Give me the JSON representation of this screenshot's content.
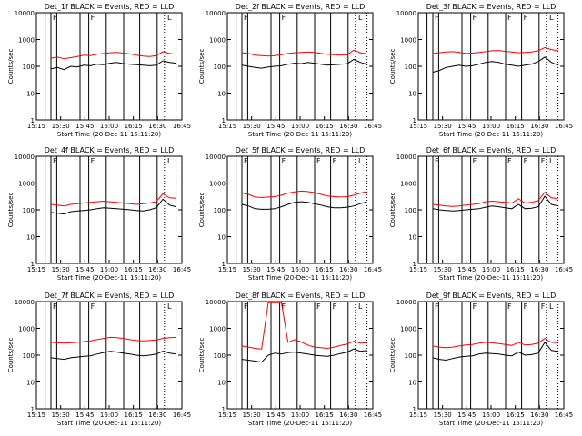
{
  "chart_data": [
    {
      "type": "line",
      "title": "Det_1f BLACK = Events, RED = LLD",
      "xlabel": "Start Time (20-Dec-11 15:11:20)",
      "ylabel": "Counts/sec",
      "yscale": "log",
      "ylim": [
        1,
        10000
      ],
      "x_ticks": [
        "15:15",
        "15:30",
        "15:45",
        "16:00",
        "16:15",
        "16:30",
        "16:45"
      ],
      "y_ticks": [
        "1",
        "10",
        "100",
        "1000",
        "10000"
      ],
      "flags": [
        "F",
        "F",
        "L"
      ],
      "series": [
        {
          "name": "Events",
          "color": "#000000",
          "values": [
            80,
            90,
            75,
            100,
            95,
            110,
            105,
            120,
            115,
            130,
            140,
            125,
            120,
            115,
            110,
            105,
            110,
            160,
            140,
            130
          ]
        },
        {
          "name": "LLD",
          "color": "#ff0000",
          "values": [
            200,
            220,
            190,
            210,
            230,
            260,
            250,
            280,
            300,
            320,
            330,
            310,
            290,
            260,
            240,
            230,
            250,
            350,
            300,
            280
          ]
        }
      ]
    },
    {
      "type": "line",
      "title": "Det_2f BLACK = Events, RED = LLD",
      "xlabel": "Start Time (20-Dec-11 15:11:20)",
      "ylabel": "Counts/sec",
      "yscale": "log",
      "ylim": [
        1,
        10000
      ],
      "x_ticks": [
        "15:15",
        "15:30",
        "15:45",
        "16:00",
        "16:15",
        "16:30",
        "16:45"
      ],
      "y_ticks": [
        "1",
        "10",
        "100",
        "1000",
        "10000"
      ],
      "flags": [
        "F",
        "F",
        "L"
      ],
      "series": [
        {
          "name": "Events",
          "color": "#000000",
          "values": [
            110,
            100,
            90,
            85,
            95,
            100,
            105,
            120,
            130,
            125,
            140,
            130,
            120,
            110,
            115,
            120,
            125,
            180,
            140,
            120
          ]
        },
        {
          "name": "LLD",
          "color": "#ff0000",
          "values": [
            320,
            300,
            260,
            250,
            240,
            250,
            270,
            300,
            320,
            330,
            340,
            330,
            300,
            280,
            270,
            260,
            270,
            400,
            320,
            290
          ]
        }
      ]
    },
    {
      "type": "line",
      "title": "Det_3f BLACK = Events, RED = LLD",
      "xlabel": "Start Time (20-Dec-11 15:11:20)",
      "ylabel": "Counts/sec",
      "yscale": "log",
      "ylim": [
        1,
        10000
      ],
      "x_ticks": [
        "15:15",
        "15:30",
        "15:45",
        "16:00",
        "16:15",
        "16:30",
        "16:45"
      ],
      "y_ticks": [
        "1",
        "10",
        "100",
        "1000",
        "10000"
      ],
      "flags": [
        "F",
        "F",
        "F",
        "F",
        "L"
      ],
      "series": [
        {
          "name": "Events",
          "color": "#000000",
          "values": [
            60,
            70,
            90,
            100,
            110,
            100,
            105,
            120,
            140,
            150,
            140,
            120,
            110,
            100,
            110,
            120,
            150,
            220,
            140,
            110
          ]
        },
        {
          "name": "LLD",
          "color": "#ff0000",
          "values": [
            300,
            320,
            340,
            350,
            330,
            300,
            310,
            330,
            350,
            380,
            390,
            360,
            340,
            320,
            330,
            340,
            380,
            500,
            420,
            380
          ]
        }
      ]
    },
    {
      "type": "line",
      "title": "Det_4f BLACK = Events, RED = LLD",
      "xlabel": "Start Time (20-Dec-11 15:11:20)",
      "ylabel": "Counts/sec",
      "yscale": "log",
      "ylim": [
        1,
        10000
      ],
      "x_ticks": [
        "15:15",
        "15:30",
        "15:45",
        "16:00",
        "16:15",
        "16:30",
        "16:45"
      ],
      "y_ticks": [
        "1",
        "10",
        "100",
        "1000",
        "10000"
      ],
      "flags": [
        "F",
        "F",
        "L"
      ],
      "series": [
        {
          "name": "Events",
          "color": "#000000",
          "values": [
            80,
            75,
            70,
            85,
            90,
            95,
            100,
            110,
            120,
            115,
            110,
            105,
            100,
            95,
            90,
            100,
            120,
            250,
            150,
            130
          ]
        },
        {
          "name": "LLD",
          "color": "#ff0000",
          "values": [
            160,
            150,
            140,
            160,
            170,
            180,
            190,
            200,
            210,
            200,
            190,
            180,
            170,
            160,
            170,
            180,
            200,
            400,
            280,
            270
          ]
        }
      ]
    },
    {
      "type": "line",
      "title": "Det_5f BLACK = Events, RED = LLD",
      "xlabel": "Start Time (20-Dec-11 15:11:20)",
      "ylabel": "Counts/sec",
      "yscale": "log",
      "ylim": [
        1,
        10000
      ],
      "x_ticks": [
        "15:15",
        "15:30",
        "15:45",
        "16:00",
        "16:15",
        "16:30",
        "16:45"
      ],
      "y_ticks": [
        "1",
        "10",
        "100",
        "1000",
        "10000"
      ],
      "flags": [
        "F",
        "F",
        "F",
        "F",
        "L"
      ],
      "series": [
        {
          "name": "Events",
          "color": "#000000",
          "values": [
            160,
            140,
            110,
            105,
            105,
            110,
            130,
            160,
            190,
            200,
            190,
            170,
            150,
            130,
            120,
            120,
            125,
            140,
            170,
            200
          ]
        },
        {
          "name": "LLD",
          "color": "#ff0000",
          "values": [
            420,
            380,
            300,
            290,
            300,
            310,
            350,
            420,
            470,
            500,
            480,
            440,
            380,
            330,
            310,
            300,
            310,
            350,
            420,
            480
          ]
        }
      ]
    },
    {
      "type": "line",
      "title": "Det_6f BLACK = Events, RED = LLD",
      "xlabel": "Start Time (20-Dec-11 15:11:20)",
      "ylabel": "Counts/sec",
      "yscale": "log",
      "ylim": [
        1,
        10000
      ],
      "x_ticks": [
        "15:15",
        "15:30",
        "15:45",
        "16:00",
        "16:15",
        "16:30",
        "16:45"
      ],
      "y_ticks": [
        "1",
        "10",
        "100",
        "1000",
        "10000"
      ],
      "flags": [
        "F",
        "F",
        "F",
        "F",
        "F",
        "L"
      ],
      "series": [
        {
          "name": "Events",
          "color": "#000000",
          "values": [
            110,
            100,
            95,
            90,
            95,
            100,
            105,
            110,
            125,
            140,
            130,
            120,
            110,
            160,
            110,
            115,
            130,
            320,
            160,
            140
          ]
        },
        {
          "name": "LLD",
          "color": "#ff0000",
          "values": [
            160,
            150,
            140,
            135,
            140,
            150,
            160,
            170,
            200,
            210,
            200,
            190,
            180,
            260,
            180,
            190,
            220,
            450,
            280,
            260
          ]
        }
      ]
    },
    {
      "type": "line",
      "title": "Det_7f BLACK = Events, RED = LLD",
      "xlabel": "Start Time (20-Dec-11 15:11:20)",
      "ylabel": "Counts/sec",
      "yscale": "log",
      "ylim": [
        1,
        10000
      ],
      "x_ticks": [
        "15:15",
        "15:30",
        "15:45",
        "16:00",
        "16:15",
        "16:30",
        "16:45"
      ],
      "y_ticks": [
        "1",
        "10",
        "100",
        "1000",
        "10000"
      ],
      "flags": [
        "F",
        "F",
        "L"
      ],
      "series": [
        {
          "name": "Events",
          "color": "#000000",
          "values": [
            80,
            75,
            70,
            80,
            85,
            90,
            95,
            110,
            125,
            140,
            130,
            120,
            110,
            100,
            95,
            100,
            110,
            140,
            120,
            110
          ]
        },
        {
          "name": "LLD",
          "color": "#ff0000",
          "values": [
            300,
            290,
            280,
            290,
            300,
            320,
            340,
            380,
            420,
            460,
            450,
            420,
            380,
            350,
            340,
            350,
            370,
            420,
            450,
            460
          ]
        }
      ]
    },
    {
      "type": "line",
      "title": "Det_8f BLACK = Events, RED = LLD",
      "xlabel": "Start Time (20-Dec-11 15:11:20)",
      "ylabel": "Counts/sec",
      "yscale": "log",
      "ylim": [
        1,
        10000
      ],
      "x_ticks": [
        "15:15",
        "15:30",
        "15:45",
        "16:00",
        "16:15",
        "16:30",
        "16:45"
      ],
      "y_ticks": [
        "1",
        "10",
        "100",
        "1000",
        "10000"
      ],
      "flags": [
        "F",
        "F",
        "F",
        "F",
        "L"
      ],
      "series": [
        {
          "name": "Events",
          "color": "#000000",
          "values": [
            70,
            65,
            60,
            55,
            100,
            120,
            110,
            125,
            130,
            120,
            110,
            100,
            95,
            90,
            100,
            115,
            130,
            170,
            140,
            150
          ]
        },
        {
          "name": "LLD",
          "color": "#ff0000",
          "values": [
            220,
            200,
            180,
            170,
            9000,
            9000,
            9000,
            300,
            380,
            310,
            240,
            200,
            190,
            180,
            200,
            230,
            260,
            330,
            280,
            290
          ]
        }
      ]
    },
    {
      "type": "line",
      "title": "Det_9f BLACK = Events, RED = LLD",
      "xlabel": "Start Time (20-Dec-11 15:11:20)",
      "ylabel": "Counts/sec",
      "yscale": "log",
      "ylim": [
        1,
        10000
      ],
      "x_ticks": [
        "15:15",
        "15:30",
        "15:45",
        "16:00",
        "16:15",
        "16:30",
        "16:45"
      ],
      "y_ticks": [
        "1",
        "10",
        "100",
        "1000",
        "10000"
      ],
      "flags": [
        "F",
        "F",
        "F",
        "F",
        "F",
        "L"
      ],
      "series": [
        {
          "name": "Events",
          "color": "#000000",
          "values": [
            80,
            70,
            65,
            75,
            85,
            90,
            95,
            110,
            120,
            115,
            110,
            100,
            95,
            130,
            100,
            105,
            120,
            300,
            150,
            140
          ]
        },
        {
          "name": "LLD",
          "color": "#ff0000",
          "values": [
            220,
            200,
            190,
            200,
            220,
            240,
            250,
            280,
            300,
            290,
            270,
            250,
            230,
            300,
            240,
            250,
            280,
            420,
            300,
            290
          ]
        }
      ]
    }
  ]
}
